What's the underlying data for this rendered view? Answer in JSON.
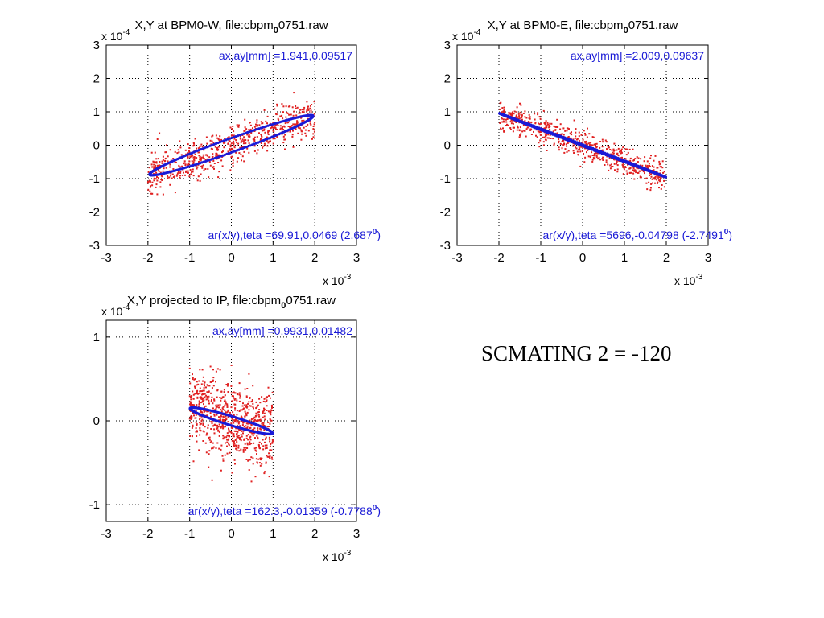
{
  "side_note": "SCMATING 2 = -120",
  "colors": {
    "points": "#e02020",
    "ellipse": "#1a1ad6",
    "annotation": "#1a1ad6"
  },
  "chart_data": [
    {
      "type": "scatter",
      "title_prefix": "X,Y at BPM0-W, file:cbpm",
      "title_sub": "0",
      "title_suffix": "0751.raw",
      "x_exponent_label": "x 10",
      "x_exponent_power": "-3",
      "y_exponent_label": "x 10",
      "y_exponent_power": "-4",
      "xlim": [
        -3,
        3
      ],
      "ylim": [
        -3,
        3
      ],
      "xticks": [
        "-3",
        "-2",
        "-1",
        "0",
        "1",
        "2",
        "3"
      ],
      "yticks": [
        "3",
        "2",
        "1",
        "0",
        "-1",
        "-2",
        "-3"
      ],
      "xtick_values": [
        -3,
        -2,
        -1,
        0,
        1,
        2,
        3
      ],
      "ytick_values": [
        3,
        2,
        1,
        0,
        -1,
        -2,
        -3
      ],
      "grid": true,
      "annotation_top": "ax,ay[mm] =1.941,0.09517",
      "annotation_bottom": "ar(x/y),teta =69.91,0.0469 (2.687",
      "annotation_bottom_sup": "0",
      "annotation_bottom_end": ")",
      "ellipse": {
        "center": [
          0,
          0
        ],
        "a": 2.15,
        "b": 0.2,
        "angle_deg": 24.5
      },
      "cloud": {
        "x_half_range": 2.0,
        "slope": 0.45,
        "spread": 0.32,
        "n": 650,
        "seed": 11
      }
    },
    {
      "type": "scatter",
      "title_prefix": "X,Y at BPM0-E, file:cbpm",
      "title_sub": "0",
      "title_suffix": "0751.raw",
      "x_exponent_label": "x 10",
      "x_exponent_power": "-3",
      "y_exponent_label": "x 10",
      "y_exponent_power": "-4",
      "xlim": [
        -3,
        3
      ],
      "ylim": [
        -3,
        3
      ],
      "xticks": [
        "-3",
        "-2",
        "-1",
        "0",
        "1",
        "2",
        "3"
      ],
      "yticks": [
        "3",
        "2",
        "1",
        "0",
        "-1",
        "-2",
        "-3"
      ],
      "xtick_values": [
        -3,
        -2,
        -1,
        0,
        1,
        2,
        3
      ],
      "ytick_values": [
        3,
        2,
        1,
        0,
        -1,
        -2,
        -3
      ],
      "grid": true,
      "annotation_top": "ax,ay[mm] =2.009,0.09637",
      "annotation_bottom": "ar(x/y),teta =5696,-0.04798 (-2.7491",
      "annotation_bottom_sup": "0",
      "annotation_bottom_end": ")",
      "ellipse": {
        "center": [
          0,
          0
        ],
        "a": 2.2,
        "b": 0.02,
        "angle_deg": -25.5
      },
      "cloud": {
        "x_half_range": 2.0,
        "slope": -0.48,
        "spread": 0.22,
        "n": 650,
        "seed": 29
      }
    },
    {
      "type": "scatter",
      "title_prefix": "X,Y projected to IP, file:cbpm",
      "title_sub": "0",
      "title_suffix": "0751.raw",
      "x_exponent_label": "x 10",
      "x_exponent_power": "-3",
      "y_exponent_label": "x 10",
      "y_exponent_power": "-4",
      "xlim": [
        -3,
        3
      ],
      "ylim": [
        -1.2,
        1.2
      ],
      "xticks": [
        "-3",
        "-2",
        "-1",
        "0",
        "1",
        "2",
        "3"
      ],
      "yticks": [
        "1",
        "0",
        "-1"
      ],
      "xtick_values": [
        -3,
        -2,
        -1,
        0,
        1,
        2,
        3
      ],
      "ytick_values": [
        1,
        0,
        -1
      ],
      "grid": true,
      "annotation_top": "ax,ay[mm] =0.9931,0.01482",
      "annotation_bottom": "ar(x/y),teta =162.3,-0.01359 (-0.7788",
      "annotation_bottom_sup": "0",
      "annotation_bottom_end": ")",
      "ellipse": {
        "center": [
          0,
          0
        ],
        "a": 1.0,
        "b": 0.055,
        "angle_deg": -8.5
      },
      "cloud": {
        "x_half_range": 1.0,
        "slope": -0.15,
        "spread": 0.23,
        "n": 750,
        "seed": 47
      }
    }
  ]
}
